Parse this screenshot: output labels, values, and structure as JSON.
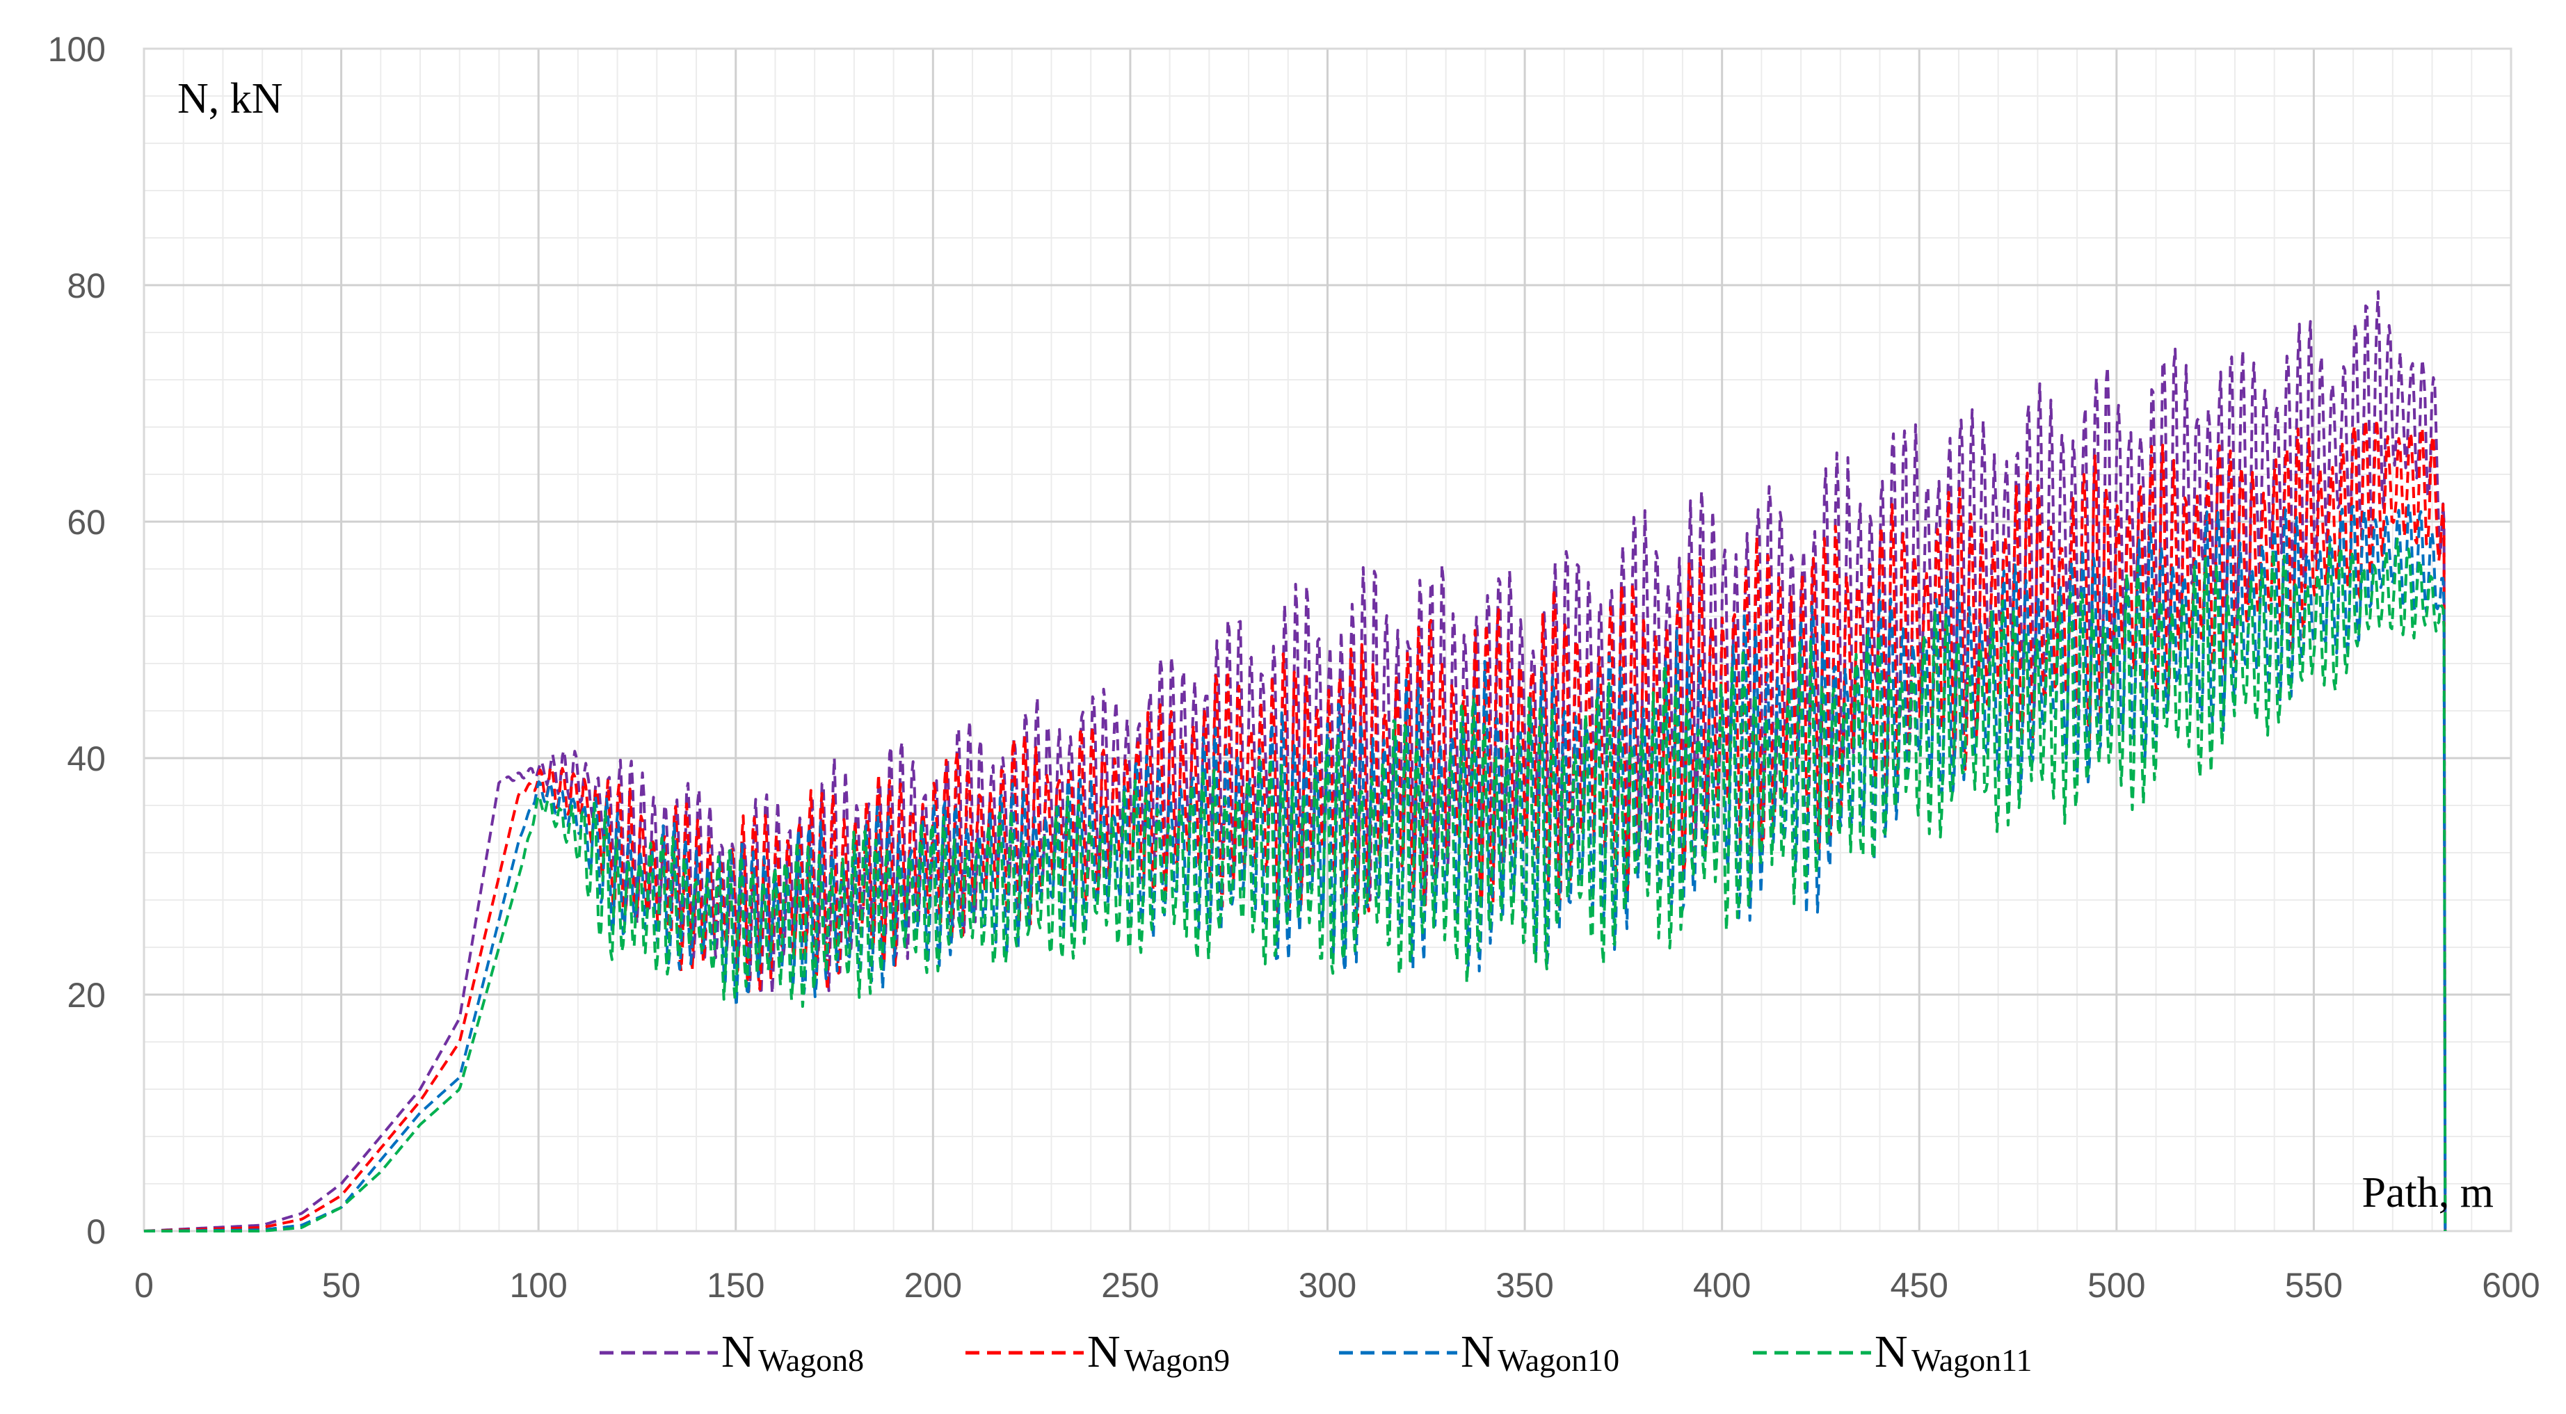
{
  "chart_data": {
    "type": "line",
    "ylabel": "N, kN",
    "xlabel": "Path, m",
    "xlim": [
      0,
      600
    ],
    "ylim": [
      0,
      100
    ],
    "x_ticks": [
      "0",
      "50",
      "100",
      "150",
      "200",
      "250",
      "300",
      "350",
      "400",
      "450",
      "500",
      "550",
      "600"
    ],
    "y_ticks": [
      "0",
      "20",
      "40",
      "60",
      "80",
      "100"
    ],
    "grid": true,
    "legend_position": "bottom",
    "series": [
      {
        "name": "NWagon8",
        "name_main": "N",
        "name_sub": "Wagon8",
        "color": "#7030A0",
        "dash": "dashed",
        "envelope": [
          [
            0,
            0,
            0
          ],
          [
            30,
            0.5,
            0.5
          ],
          [
            40,
            1.5,
            1.5
          ],
          [
            50,
            4,
            4
          ],
          [
            60,
            8,
            8
          ],
          [
            70,
            12,
            12
          ],
          [
            80,
            18,
            18
          ],
          [
            90,
            38,
            38
          ],
          [
            100,
            38,
            40
          ],
          [
            110,
            36,
            41
          ],
          [
            120,
            28,
            40
          ],
          [
            130,
            24,
            40
          ],
          [
            140,
            22,
            38
          ],
          [
            150,
            20,
            36
          ],
          [
            175,
            20,
            40
          ],
          [
            200,
            24,
            42
          ],
          [
            225,
            28,
            45
          ],
          [
            250,
            30,
            47
          ],
          [
            275,
            30,
            52
          ],
          [
            300,
            28,
            56
          ],
          [
            325,
            28,
            57
          ],
          [
            350,
            30,
            57
          ],
          [
            375,
            32,
            61
          ],
          [
            400,
            34,
            63
          ],
          [
            425,
            36,
            65
          ],
          [
            450,
            42,
            70
          ],
          [
            475,
            44,
            71
          ],
          [
            500,
            46,
            74
          ],
          [
            525,
            50,
            75
          ],
          [
            550,
            54,
            77
          ],
          [
            570,
            60,
            80
          ],
          [
            580,
            62,
            74
          ],
          [
            583,
            55,
            65
          ],
          [
            583.3,
            0,
            0
          ]
        ],
        "drop_x": 583.3
      },
      {
        "name": "NWagon9",
        "name_main": "N",
        "name_sub": "Wagon9",
        "color": "#FF0000",
        "dash": "dashed",
        "envelope": [
          [
            0,
            0,
            0
          ],
          [
            30,
            0.3,
            0.3
          ],
          [
            40,
            1,
            1
          ],
          [
            50,
            3,
            3
          ],
          [
            60,
            7,
            7
          ],
          [
            70,
            11,
            11
          ],
          [
            80,
            16,
            16
          ],
          [
            95,
            37,
            37
          ],
          [
            100,
            37,
            39
          ],
          [
            110,
            34,
            40
          ],
          [
            120,
            26,
            38
          ],
          [
            130,
            22,
            37
          ],
          [
            140,
            22,
            36
          ],
          [
            150,
            20,
            35
          ],
          [
            175,
            20,
            38
          ],
          [
            200,
            24,
            40
          ],
          [
            225,
            26,
            42
          ],
          [
            250,
            28,
            43
          ],
          [
            275,
            27,
            48
          ],
          [
            300,
            26,
            50
          ],
          [
            325,
            26,
            52
          ],
          [
            350,
            27,
            54
          ],
          [
            375,
            28,
            55
          ],
          [
            400,
            30,
            58
          ],
          [
            425,
            32,
            60
          ],
          [
            450,
            38,
            62
          ],
          [
            475,
            40,
            64
          ],
          [
            500,
            42,
            66
          ],
          [
            525,
            46,
            67
          ],
          [
            550,
            50,
            68
          ],
          [
            570,
            56,
            70
          ],
          [
            580,
            58,
            68
          ],
          [
            583,
            55,
            62
          ],
          [
            583.3,
            0,
            0
          ]
        ],
        "drop_x": 583.3
      },
      {
        "name": "NWagon10",
        "name_main": "N",
        "name_sub": "Wagon10",
        "color": "#0070C0",
        "dash": "dashed",
        "envelope": [
          [
            0,
            0,
            0
          ],
          [
            30,
            0.1,
            0.1
          ],
          [
            40,
            0.5,
            0.5
          ],
          [
            50,
            2,
            2
          ],
          [
            60,
            6,
            6
          ],
          [
            70,
            10,
            10
          ],
          [
            80,
            13,
            13
          ],
          [
            95,
            33,
            33
          ],
          [
            100,
            37,
            38
          ],
          [
            110,
            32,
            38
          ],
          [
            120,
            24,
            36
          ],
          [
            130,
            22,
            35
          ],
          [
            140,
            21,
            34
          ],
          [
            150,
            19,
            33
          ],
          [
            175,
            19,
            35
          ],
          [
            200,
            22,
            37
          ],
          [
            225,
            24,
            38
          ],
          [
            250,
            25,
            40
          ],
          [
            275,
            24,
            43
          ],
          [
            300,
            22,
            45
          ],
          [
            325,
            22,
            47
          ],
          [
            350,
            22,
            49
          ],
          [
            375,
            24,
            50
          ],
          [
            400,
            26,
            52
          ],
          [
            425,
            27,
            53
          ],
          [
            450,
            35,
            55
          ],
          [
            475,
            37,
            57
          ],
          [
            500,
            38,
            59
          ],
          [
            525,
            42,
            61
          ],
          [
            550,
            46,
            61
          ],
          [
            570,
            52,
            63
          ],
          [
            580,
            52,
            60
          ],
          [
            583,
            50,
            56
          ],
          [
            583.3,
            0,
            0
          ]
        ],
        "drop_x": 583.3
      },
      {
        "name": "NWagon11",
        "name_main": "N",
        "name_sub": "Wagon11",
        "color": "#00B050",
        "dash": "dashed",
        "envelope": [
          [
            0,
            0,
            0
          ],
          [
            30,
            0,
            0
          ],
          [
            40,
            0.3,
            0.3
          ],
          [
            50,
            2,
            2
          ],
          [
            60,
            5,
            5
          ],
          [
            70,
            9,
            9
          ],
          [
            80,
            12,
            12
          ],
          [
            95,
            30,
            30
          ],
          [
            100,
            36,
            37
          ],
          [
            110,
            30,
            37
          ],
          [
            120,
            20,
            35
          ],
          [
            130,
            22,
            34
          ],
          [
            140,
            21,
            33
          ],
          [
            150,
            19,
            32
          ],
          [
            175,
            19,
            34
          ],
          [
            200,
            22,
            35
          ],
          [
            225,
            22,
            36
          ],
          [
            250,
            23,
            38
          ],
          [
            275,
            23,
            40
          ],
          [
            300,
            21,
            42
          ],
          [
            325,
            21,
            44
          ],
          [
            350,
            21,
            46
          ],
          [
            375,
            23,
            47
          ],
          [
            400,
            25,
            49
          ],
          [
            425,
            28,
            50
          ],
          [
            450,
            33,
            52
          ],
          [
            475,
            34,
            54
          ],
          [
            500,
            35,
            56
          ],
          [
            525,
            39,
            57
          ],
          [
            550,
            44,
            58
          ],
          [
            570,
            50,
            59
          ],
          [
            580,
            50,
            57
          ],
          [
            583,
            48,
            54
          ],
          [
            583.3,
            0,
            0
          ]
        ],
        "drop_x": 583.3
      }
    ]
  }
}
